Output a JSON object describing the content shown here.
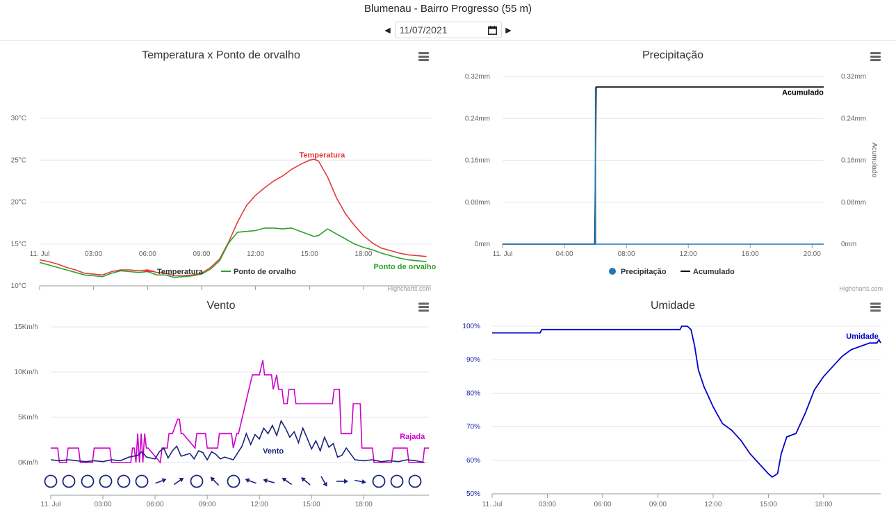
{
  "header": {
    "station_title": "Blumenau - Bairro Progresso (55 m)",
    "date_value": "11/07/2021",
    "prev_icon": "caret-left-icon",
    "next_icon": "caret-right-icon",
    "calendar_icon": "calendar-icon"
  },
  "credits": "Highcharts.com",
  "chart_data": [
    {
      "id": "temp",
      "type": "line",
      "title": "Temperatura x Ponto de orvalho",
      "x_hours": [
        0,
        0.5,
        1,
        1.5,
        2,
        2.5,
        3,
        3.5,
        4,
        4.5,
        5,
        5.5,
        6,
        6.5,
        7,
        7.5,
        8,
        8.5,
        9,
        9.5,
        10,
        10.5,
        11,
        11.5,
        12,
        12.5,
        13,
        13.5,
        14,
        14.5,
        15,
        15.25,
        15.5,
        16,
        16.5,
        17,
        17.5,
        18,
        18.5,
        19,
        19.5,
        20,
        20.5,
        21,
        21.5
      ],
      "x_ticks": [
        "11. Jul",
        "03:00",
        "06:00",
        "09:00",
        "12:00",
        "15:00",
        "18:00"
      ],
      "x_tick_hours": [
        0,
        3,
        6,
        9,
        12,
        15,
        18
      ],
      "x_range": [
        0,
        21.75
      ],
      "y_ticks": [
        "10°C",
        "15°C",
        "20°C",
        "25°C",
        "30°C"
      ],
      "y_tick_values": [
        10,
        15,
        20,
        25,
        30
      ],
      "ylim": [
        10,
        30
      ],
      "series": [
        {
          "name": "Temperatura",
          "color": "#e23b3b",
          "values": [
            13.1,
            12.9,
            12.6,
            12.2,
            11.9,
            11.5,
            11.4,
            11.3,
            11.7,
            11.9,
            11.9,
            11.8,
            11.9,
            11.6,
            11.5,
            11.2,
            11.2,
            11.3,
            11.5,
            12.2,
            13.2,
            15.2,
            17.6,
            19.6,
            20.8,
            21.7,
            22.5,
            23.1,
            23.9,
            24.5,
            25.0,
            25.1,
            24.9,
            23.0,
            20.5,
            18.6,
            17.2,
            16.0,
            15.1,
            14.5,
            14.2,
            13.9,
            13.7,
            13.6,
            13.5
          ],
          "label": "Temperatura",
          "label_hour": 15.7,
          "label_value": 25.3
        },
        {
          "name": "Ponto de orvalho",
          "color": "#2ca02c",
          "values": [
            12.8,
            12.5,
            12.2,
            11.9,
            11.6,
            11.3,
            11.2,
            11.1,
            11.5,
            11.8,
            11.7,
            11.6,
            11.7,
            11.3,
            11.3,
            11.0,
            11.1,
            11.2,
            11.4,
            12.0,
            13.0,
            15.1,
            16.4,
            16.5,
            16.6,
            16.9,
            16.9,
            16.8,
            16.9,
            16.5,
            16.1,
            15.9,
            16.0,
            16.8,
            16.2,
            15.6,
            15.0,
            14.6,
            14.3,
            13.9,
            13.6,
            13.3,
            13.1,
            13.0,
            12.9
          ],
          "label": "Ponto de orvalho",
          "label_hour": 20.3,
          "label_value": 12.0
        }
      ],
      "legend": [
        "Temperatura",
        "Ponto de orvalho"
      ],
      "legend_position": "bottom"
    },
    {
      "id": "precip",
      "type": "line",
      "title": "Precipitação",
      "x_ticks": [
        "11. Jul",
        "04:00",
        "08:00",
        "12:00",
        "16:00",
        "20:00"
      ],
      "x_tick_hours": [
        0,
        4,
        8,
        12,
        16,
        20
      ],
      "x_range": [
        0,
        20.75
      ],
      "y_ticks": [
        "0mm",
        "0.08mm",
        "0.16mm",
        "0.24mm",
        "0.32mm"
      ],
      "y_tick_values": [
        0,
        0.08,
        0.16,
        0.24,
        0.32
      ],
      "ylim": [
        0,
        0.32
      ],
      "y2_ticks": [
        "0mm",
        "0.08mm",
        "0.16mm",
        "0.24mm",
        "0.32mm"
      ],
      "y2_label": "Acumulado",
      "series": [
        {
          "name": "Precipitação",
          "color": "#1f77b4",
          "x": [
            0,
            5.98,
            6.0,
            6.02,
            20.75
          ],
          "values": [
            0,
            0,
            0.3,
            0,
            0
          ]
        },
        {
          "name": "Acumulado",
          "color": "#000000",
          "x": [
            0,
            5.95,
            6.05,
            20.75
          ],
          "values": [
            0,
            0,
            0.3,
            0.3
          ],
          "label": "Acumulado",
          "label_hour": 19.4,
          "label_value": 0.285
        }
      ],
      "legend": [
        "Precipitação",
        "Acumulado"
      ],
      "legend_position": "bottom"
    },
    {
      "id": "wind",
      "type": "line",
      "title": "Vento",
      "x_ticks": [
        "11. Jul",
        "03:00",
        "06:00",
        "09:00",
        "12:00",
        "15:00",
        "18:00"
      ],
      "x_tick_hours": [
        0,
        3,
        6,
        9,
        12,
        15,
        18
      ],
      "x_range": [
        0,
        21.75
      ],
      "y_ticks": [
        "0Km/h",
        "5Km/h",
        "10Km/h",
        "15Km/h"
      ],
      "y_tick_values": [
        0,
        5,
        10,
        15
      ],
      "ylim": [
        0,
        15
      ],
      "series": [
        {
          "name": "Rajada",
          "color": "#cc00cc",
          "x": [
            0,
            0.4,
            0.5,
            0.9,
            1.0,
            1.6,
            1.7,
            2.4,
            2.5,
            3.4,
            3.5,
            4.6,
            4.7,
            4.8,
            4.9,
            5.0,
            5.1,
            5.2,
            5.3,
            5.4,
            5.5,
            5.6,
            6.3,
            6.4,
            6.7,
            6.8,
            7.0,
            7.3,
            7.4,
            7.5,
            7.6,
            8.3,
            8.4,
            8.9,
            9.0,
            9.6,
            9.7,
            10.4,
            10.5,
            10.7,
            10.8,
            11.4,
            11.6,
            11.7,
            12.0,
            12.2,
            12.3,
            12.7,
            12.8,
            13.0,
            13.1,
            13.3,
            13.4,
            13.6,
            13.7,
            14.0,
            14.1,
            14.3,
            14.4,
            16.2,
            16.3,
            16.6,
            16.7,
            17.3,
            17.4,
            17.8,
            17.9,
            18.5,
            18.6,
            19.6,
            19.7,
            20.5,
            20.6,
            21.4,
            21.5,
            21.75
          ],
          "values": [
            1.6,
            1.6,
            0,
            0,
            1.6,
            1.6,
            0,
            0,
            1.6,
            1.6,
            0,
            0,
            1.6,
            1.6,
            0,
            3.2,
            0,
            3.2,
            0,
            3.2,
            1.6,
            1.6,
            0,
            1.6,
            1.6,
            3.2,
            3.2,
            4.8,
            4.8,
            3.2,
            3.2,
            1.6,
            3.2,
            3.2,
            1.6,
            1.6,
            3.2,
            3.2,
            1.6,
            3.2,
            3.2,
            8.1,
            9.7,
            9.7,
            9.7,
            11.3,
            9.7,
            9.7,
            8.1,
            9.7,
            8.1,
            8.1,
            6.5,
            6.5,
            8.1,
            8.1,
            6.5,
            6.5,
            6.5,
            6.5,
            8.1,
            8.1,
            3.2,
            3.2,
            6.5,
            6.5,
            1.6,
            1.6,
            0,
            0,
            1.6,
            1.6,
            0,
            0,
            1.6,
            1.6
          ],
          "label": "Rajada",
          "label_hour": 20.8,
          "label_value": 2.6
        },
        {
          "name": "Vento",
          "color": "#1a237e",
          "x": [
            0,
            0.5,
            1,
            1.5,
            2,
            2.5,
            3,
            3.5,
            4,
            4.5,
            5,
            5.25,
            5.5,
            6,
            6.25,
            6.5,
            6.75,
            7,
            7.25,
            7.5,
            8,
            8.25,
            8.5,
            8.75,
            9,
            9.25,
            9.5,
            9.75,
            10,
            10.5,
            11,
            11.25,
            11.5,
            11.75,
            12,
            12.25,
            12.5,
            12.75,
            13,
            13.25,
            13.5,
            13.75,
            14,
            14.25,
            14.5,
            14.75,
            15,
            15.25,
            15.5,
            15.75,
            16,
            16.25,
            16.5,
            16.75,
            17,
            17.5,
            18,
            18.5,
            19,
            19.5,
            20,
            20.5,
            21,
            21.5
          ],
          "values": [
            0.3,
            0.2,
            0.3,
            0.2,
            0.1,
            0.2,
            0.1,
            0.3,
            0.2,
            0.6,
            0.8,
            1.2,
            0.6,
            0.4,
            1.2,
            1.6,
            0.5,
            1.3,
            1.8,
            0.7,
            1.0,
            0.4,
            1.3,
            1.1,
            0.3,
            1.2,
            0.9,
            0.4,
            0.6,
            0.3,
            1.8,
            3.2,
            2.0,
            3.1,
            2.6,
            3.8,
            3.2,
            4.1,
            3.0,
            4.6,
            3.8,
            2.8,
            3.4,
            2.2,
            3.8,
            2.7,
            1.5,
            2.4,
            1.3,
            2.8,
            1.7,
            2.1,
            0.6,
            0.8,
            1.6,
            0.3,
            0.2,
            0.3,
            0.1,
            0.2,
            0.1,
            0.3,
            0.2,
            0.0
          ],
          "label": "Vento",
          "label_hour": 12.8,
          "label_value": 1.0
        }
      ],
      "wind_direction_row": {
        "hours": [
          0.5,
          1.25,
          2.0,
          2.75,
          3.5,
          4.25,
          5.0,
          5.75,
          6.5,
          7.25,
          8.0,
          8.75,
          9.5,
          10.25,
          11.0,
          11.75,
          12.5,
          13.25,
          14.0,
          14.75,
          15.5,
          16.25,
          17.0,
          17.75,
          18.5,
          19.25,
          20.0,
          20.75
        ],
        "types": [
          "calm",
          "calm",
          "calm",
          "calm",
          "calm",
          "calm",
          "calm",
          "calm",
          "arrow",
          "arrow",
          "calm",
          "arrow",
          "calm",
          "arrow",
          "arrow",
          "arrow",
          "arrow",
          "arrow",
          "arrow",
          "arrow",
          "arrow",
          "arrow",
          "arrow",
          "arrow",
          "arrow",
          "calm",
          "calm",
          "calm"
        ],
        "angles": [
          0,
          0,
          0,
          0,
          0,
          0,
          0,
          0,
          -20,
          -35,
          0,
          225,
          0,
          200,
          195,
          215,
          210,
          225,
          235,
          60,
          5,
          15,
          0,
          0,
          0,
          0,
          0,
          0
        ],
        "explicit": [
          {
            "hour": 0.5,
            "kind": "calm"
          },
          {
            "hour": 1.25,
            "kind": "calm"
          },
          {
            "hour": 2.0,
            "kind": "calm"
          },
          {
            "hour": 2.75,
            "kind": "calm"
          },
          {
            "hour": 3.5,
            "kind": "calm"
          },
          {
            "hour": 4.25,
            "kind": "calm"
          },
          {
            "hour": 5.0,
            "kind": "arrow",
            "angle": -20
          },
          {
            "hour": 5.75,
            "kind": "arrow",
            "angle": -35
          },
          {
            "hour": 6.5,
            "kind": "calm"
          },
          {
            "hour": 7.25,
            "kind": "arrow",
            "angle": 225
          },
          {
            "hour": 8.0,
            "kind": "calm"
          },
          {
            "hour": 8.75,
            "kind": "arrow",
            "angle": 200
          },
          {
            "hour": 9.5,
            "kind": "arrow",
            "angle": 195
          },
          {
            "hour": 10.25,
            "kind": "arrow",
            "angle": 215
          },
          {
            "hour": 11.0,
            "kind": "arrow",
            "angle": 220
          },
          {
            "hour": 11.75,
            "kind": "arrow",
            "angle": 225
          },
          {
            "hour": 12.5,
            "kind": "arrow",
            "angle": 235
          },
          {
            "hour": 13.25,
            "kind": "arrow",
            "angle": 60
          },
          {
            "hour": 14.0,
            "kind": "arrow",
            "angle": 0
          },
          {
            "hour": 14.75,
            "kind": "arrow",
            "angle": 10
          },
          {
            "hour": 15.5,
            "kind": "arrow",
            "angle": 15
          },
          {
            "hour": 16.25,
            "kind": "calm"
          },
          {
            "hour": 17.0,
            "kind": "calm"
          },
          {
            "hour": 17.75,
            "kind": "calm"
          }
        ]
      }
    },
    {
      "id": "humid",
      "type": "line",
      "title": "Umidade",
      "x_ticks": [
        "11. Jul",
        "03:00",
        "06:00",
        "09:00",
        "12:00",
        "15:00",
        "18:00"
      ],
      "x_tick_hours": [
        0,
        3,
        6,
        9,
        12,
        15,
        18
      ],
      "x_range": [
        0,
        21.1
      ],
      "y_ticks": [
        "50%",
        "60%",
        "70%",
        "80%",
        "90%",
        "100%"
      ],
      "y_tick_values": [
        50,
        60,
        70,
        80,
        90,
        100
      ],
      "ylim": [
        50,
        100
      ],
      "series": [
        {
          "name": "Umidade",
          "color": "#0000cc",
          "x": [
            0,
            2.6,
            2.7,
            10.2,
            10.3,
            10.6,
            10.8,
            11.0,
            11.2,
            11.5,
            12.0,
            12.5,
            13.0,
            13.5,
            14.0,
            14.5,
            15.0,
            15.2,
            15.5,
            15.7,
            16.0,
            16.5,
            17.0,
            17.5,
            18.0,
            18.5,
            19.0,
            19.5,
            20.0,
            20.5,
            20.9,
            21.0,
            21.1
          ],
          "values": [
            98,
            98,
            99,
            99,
            100,
            100,
            99,
            94,
            87,
            82,
            76,
            71,
            69,
            66,
            62,
            59,
            56,
            55,
            56,
            62,
            67,
            68,
            74,
            81,
            85,
            88,
            91,
            93,
            94,
            95,
            95,
            96,
            95
          ],
          "label": "Umidade",
          "label_hour": 20.1,
          "label_value": 96.3
        }
      ]
    }
  ]
}
